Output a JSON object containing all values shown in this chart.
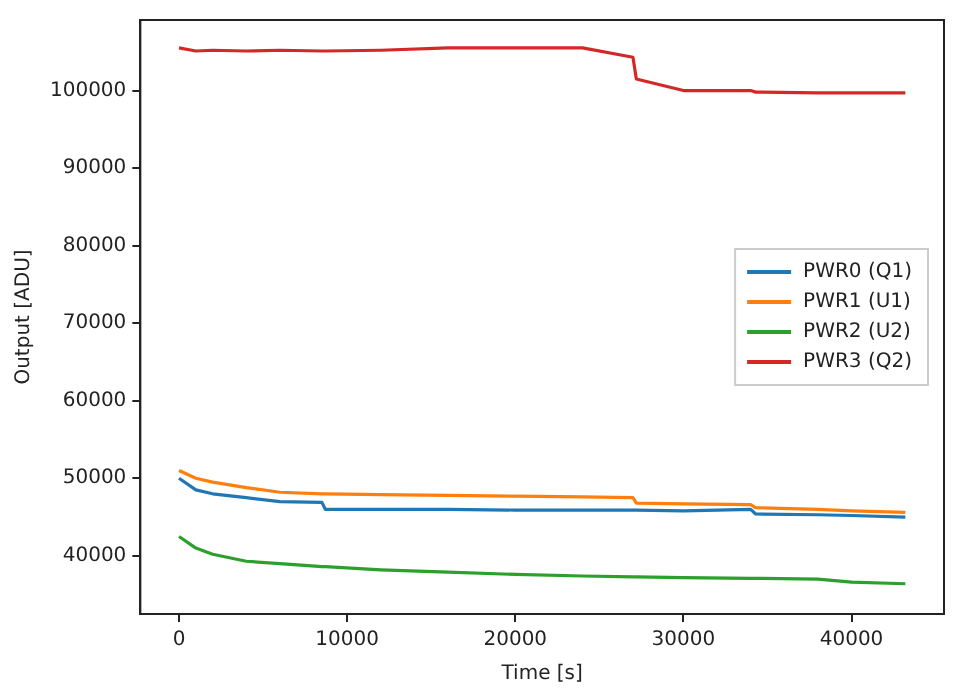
{
  "chart_data": {
    "type": "line",
    "xlabel": "Time [s]",
    "ylabel": "Output [ADU]",
    "x": [
      0,
      1000,
      2000,
      4000,
      6000,
      8500,
      8700,
      12000,
      16000,
      20000,
      24000,
      27000,
      27200,
      30000,
      34000,
      34300,
      38000,
      40000,
      43200
    ],
    "series": [
      {
        "name": "PWR0 (Q1)",
        "color": "#1f77b4",
        "values": [
          50000,
          48500,
          48000,
          47500,
          47000,
          46900,
          46000,
          46000,
          46000,
          45900,
          45900,
          45900,
          45900,
          45800,
          46000,
          45400,
          45300,
          45200,
          45000
        ]
      },
      {
        "name": "PWR1 (U1)",
        "color": "#ff7f0e",
        "values": [
          51000,
          50000,
          49500,
          48800,
          48200,
          48000,
          48000,
          47900,
          47800,
          47700,
          47600,
          47500,
          46800,
          46700,
          46600,
          46200,
          46000,
          45800,
          45600
        ]
      },
      {
        "name": "PWR2 (U2)",
        "color": "#2ca02c",
        "values": [
          42500,
          41000,
          40200,
          39300,
          39000,
          38600,
          38600,
          38200,
          37900,
          37600,
          37400,
          37300,
          37300,
          37200,
          37100,
          37100,
          37000,
          36600,
          36400
        ]
      },
      {
        "name": "PWR3 (Q2)",
        "color": "#d62728",
        "values": [
          105500,
          105100,
          105200,
          105100,
          105200,
          105100,
          105100,
          105200,
          105500,
          105500,
          105500,
          104300,
          101500,
          100000,
          100000,
          99800,
          99700,
          99700,
          99700
        ]
      }
    ],
    "xlim": [
      -2300,
      45500
    ],
    "xticks": [
      0,
      10000,
      20000,
      30000,
      40000
    ],
    "ylim": [
      32500,
      109100
    ],
    "yticks": [
      40000,
      50000,
      60000,
      70000,
      80000,
      90000,
      100000
    ],
    "grid": false,
    "legend": "center right",
    "line_style": "solid",
    "marker": "none"
  }
}
